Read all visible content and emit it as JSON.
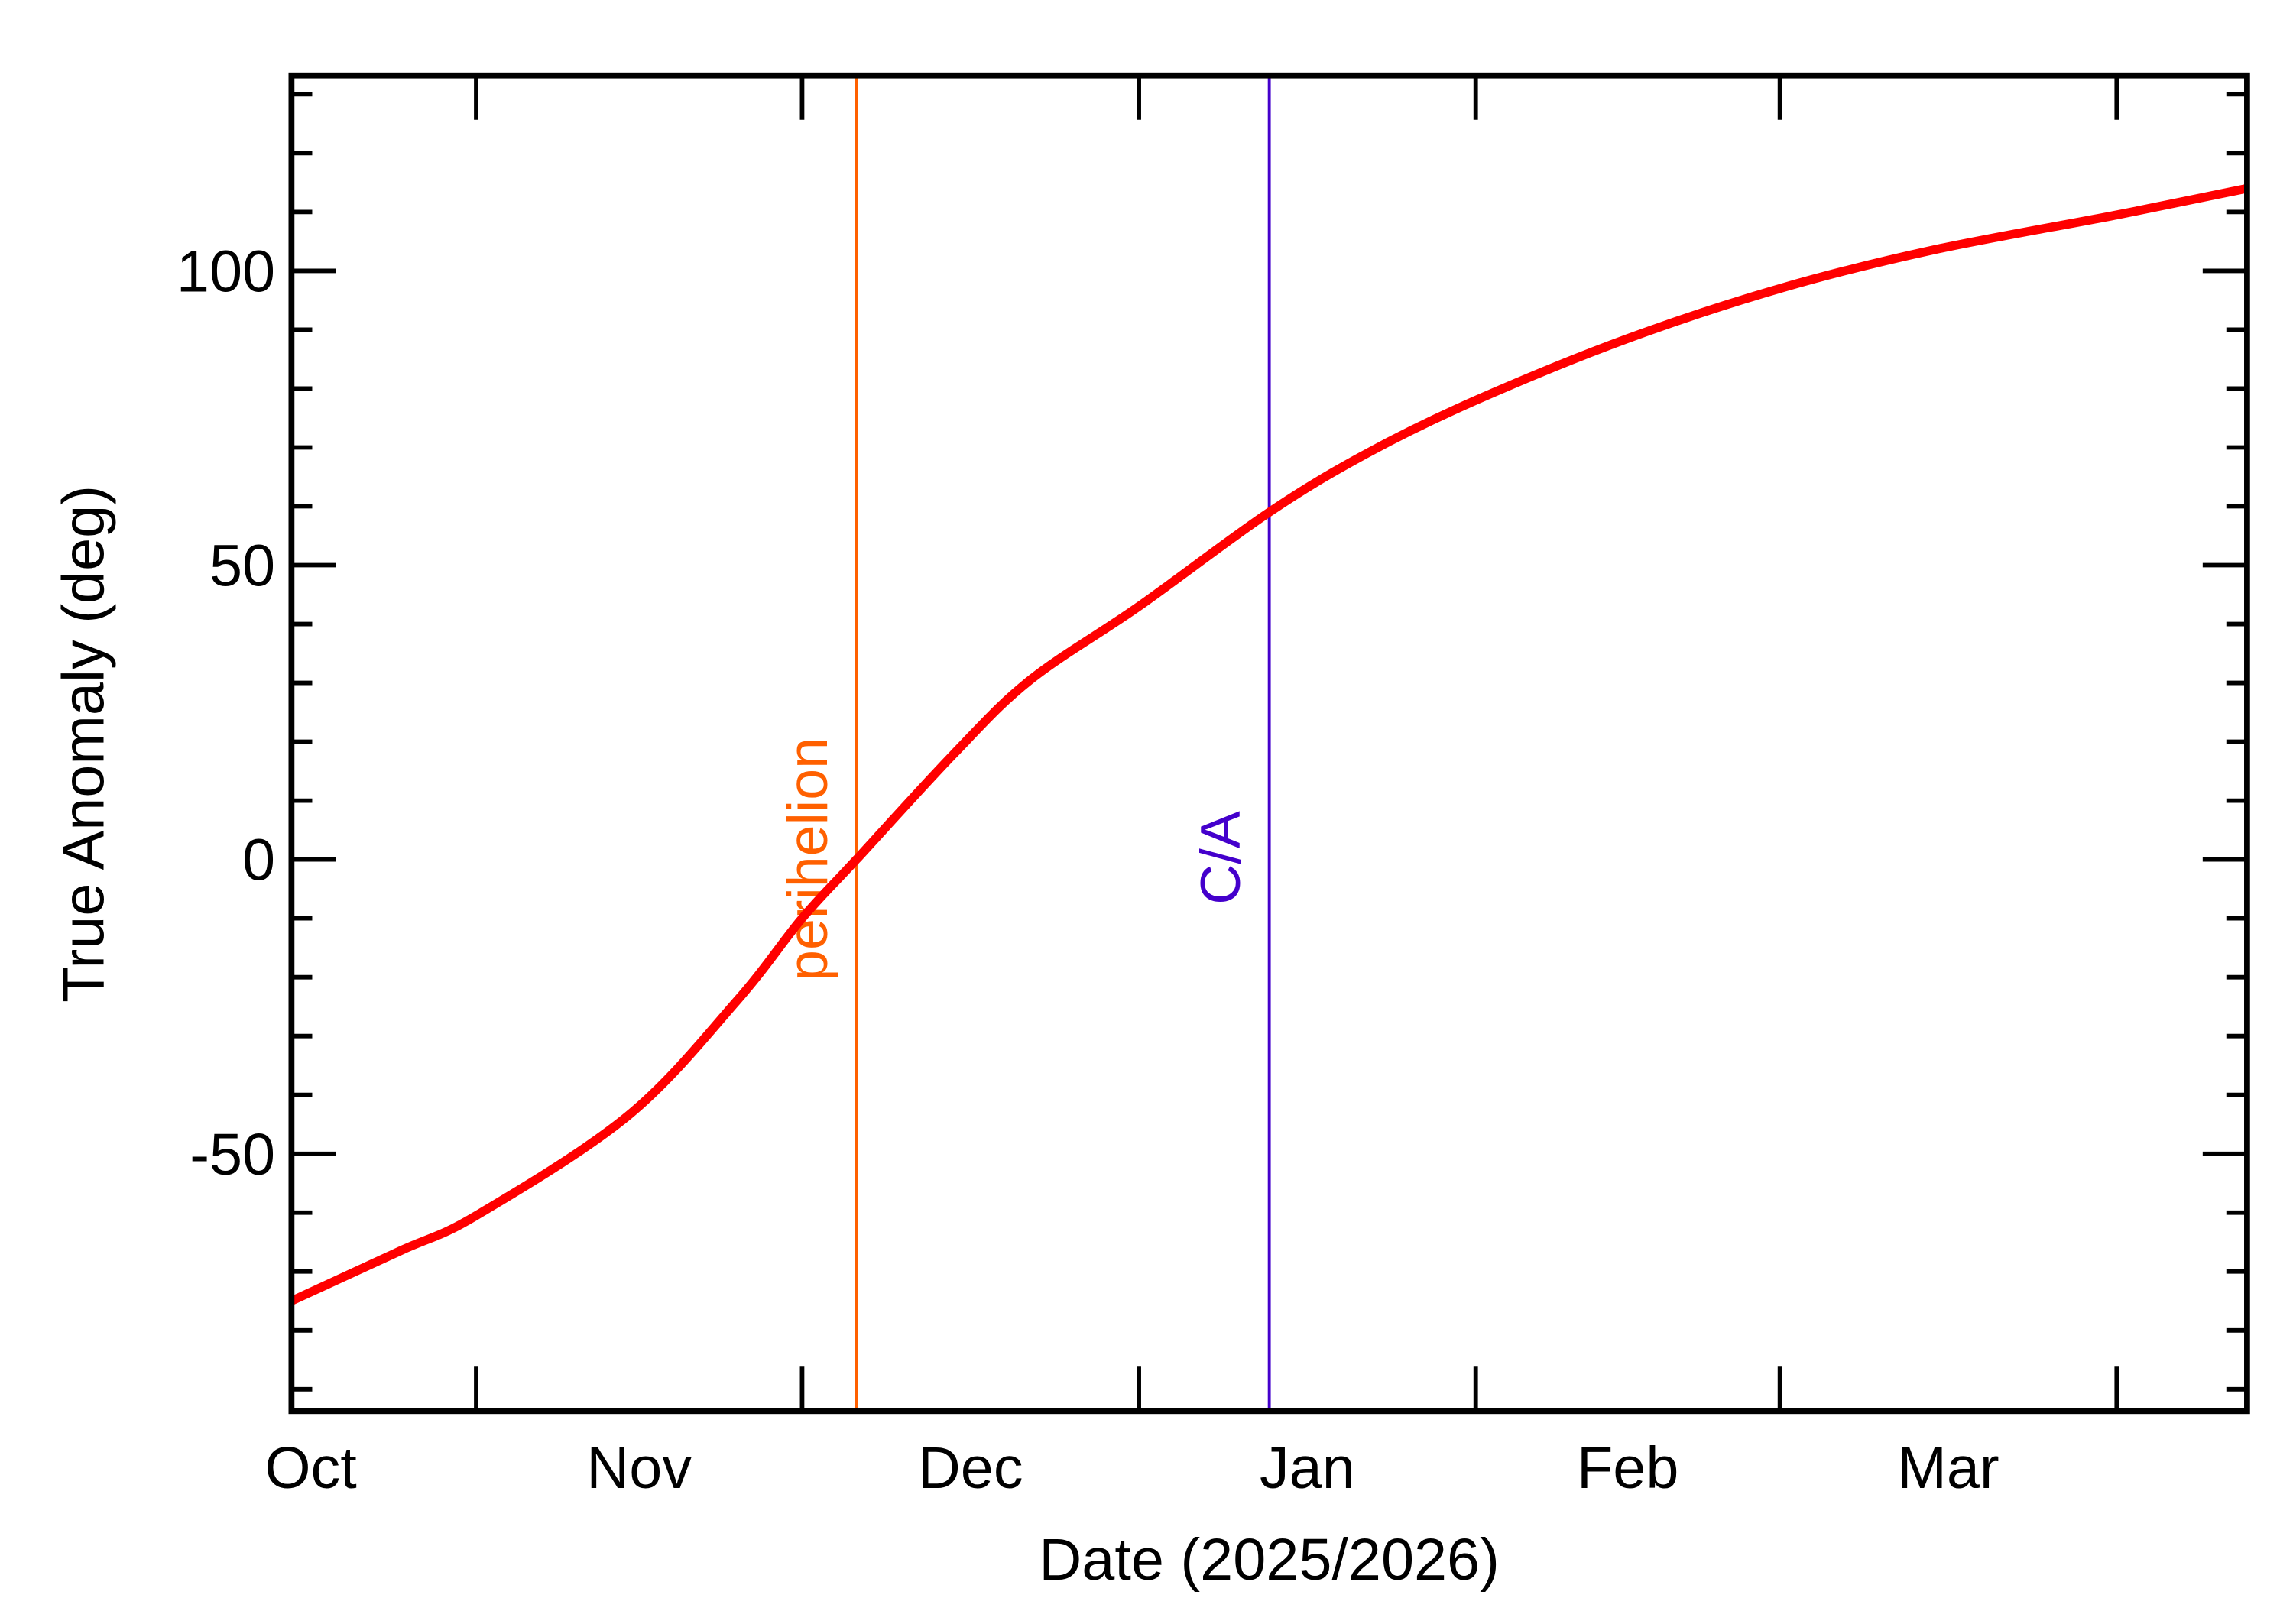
{
  "chart_data": {
    "type": "line",
    "xlabel": "Date (2025/2026)",
    "ylabel": "True Anomaly (deg)",
    "xlim": [
      "2025-10-15",
      "2026-04-13"
    ],
    "ylim": [
      -93.7,
      133.2
    ],
    "x_tick_labels": [
      {
        "label": "Oct",
        "month": "2025-10-01"
      },
      {
        "label": "Nov",
        "month": "2025-11-01"
      },
      {
        "label": "Dec",
        "month": "2025-12-01"
      },
      {
        "label": "Jan",
        "month": "2026-01-01"
      },
      {
        "label": "Feb",
        "month": "2026-02-01"
      },
      {
        "label": "Mar",
        "month": "2026-03-01"
      }
    ],
    "x_major_ticks": [
      "2025-11-01",
      "2025-12-01",
      "2026-01-01",
      "2026-02-01",
      "2026-03-01",
      "2026-04-01"
    ],
    "y_ticks": [
      -50,
      0,
      50,
      100
    ],
    "y_tick_labels": [
      "-50",
      "0",
      "50",
      "100"
    ],
    "y_minor_step": 10,
    "grid": false,
    "series": [
      {
        "color": "#ff0000",
        "points": [
          [
            "2025-10-15",
            -75
          ],
          [
            "2025-10-25",
            -66.5
          ],
          [
            "2025-11-01",
            -60.5
          ],
          [
            "2025-11-15",
            -43.5
          ],
          [
            "2025-11-25",
            -24
          ],
          [
            "2025-12-01",
            -10
          ],
          [
            "2025-12-06",
            0
          ],
          [
            "2025-12-15",
            18
          ],
          [
            "2025-12-22",
            30.5
          ],
          [
            "2026-01-01",
            43
          ],
          [
            "2026-01-13",
            59
          ],
          [
            "2026-01-22",
            69
          ],
          [
            "2026-02-01",
            78
          ],
          [
            "2026-02-15",
            88.5
          ],
          [
            "2026-03-01",
            97
          ],
          [
            "2026-03-15",
            103.5
          ],
          [
            "2026-04-01",
            109.5
          ],
          [
            "2026-04-13",
            114
          ]
        ]
      }
    ],
    "vlines": [
      {
        "label": "perihelion",
        "date": "2025-12-06",
        "color": "#ff6000"
      },
      {
        "label": "C/A",
        "date": "2026-01-13",
        "color": "#4400cc"
      }
    ]
  }
}
